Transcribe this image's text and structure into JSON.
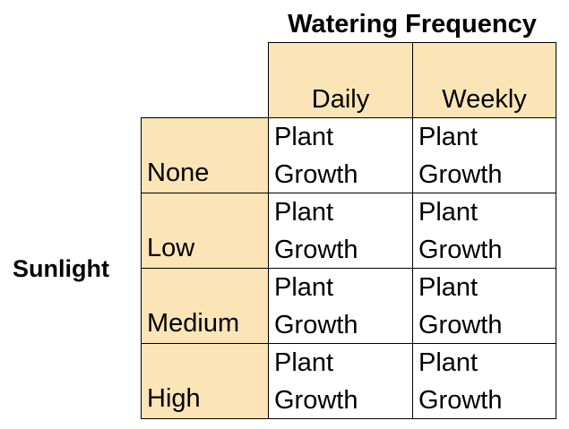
{
  "column_title": "Watering Frequency",
  "row_title": "Sunlight",
  "columns": [
    "Daily",
    "Weekly"
  ],
  "rows": [
    "None",
    "Low",
    "Medium",
    "High"
  ],
  "cell_text": {
    "line1": "Plant",
    "line2": "Growth"
  },
  "colors": {
    "header_fill": "#fbe5b6",
    "border": "#000000"
  }
}
